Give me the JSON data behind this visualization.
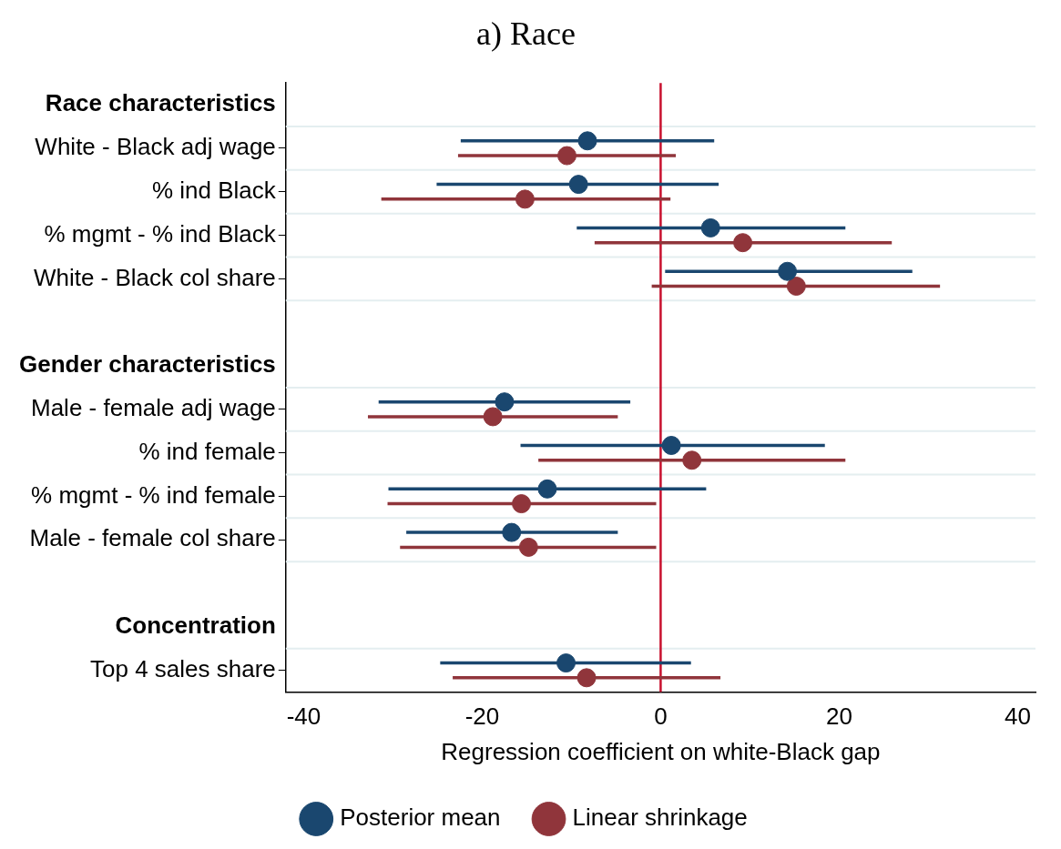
{
  "chart_data": {
    "type": "scatter",
    "orientation": "horizontal",
    "title": "a) Race",
    "xlabel": "Regression coefficient on white-Black gap",
    "categories": [
      "Race characteristics",
      "White - Black adj wage",
      "% ind Black",
      "% mgmt - % ind Black",
      "White - Black col share",
      null,
      "Gender characteristics",
      "Male - female adj wage",
      "% ind female",
      "% mgmt - % ind female",
      "Male - female col share",
      null,
      "Concentration",
      "Top 4 sales share"
    ],
    "series": [
      {
        "name": "Posterior mean",
        "color": "#1a476f",
        "values": [
          null,
          -8.2,
          -9.2,
          5.6,
          14.2,
          null,
          null,
          -17.5,
          1.2,
          -12.7,
          -16.7,
          null,
          null,
          -10.6
        ],
        "errors": [
          null,
          [
            -22.4,
            6.0
          ],
          [
            -25.1,
            6.5
          ],
          [
            -9.4,
            20.7
          ],
          [
            0.5,
            28.2
          ],
          null,
          null,
          [
            -31.6,
            -3.4
          ],
          [
            -15.7,
            18.4
          ],
          [
            -30.5,
            5.1
          ],
          [
            -28.5,
            -4.8
          ],
          null,
          null,
          [
            -24.7,
            3.4
          ]
        ]
      },
      {
        "name": "Linear shrinkage",
        "color": "#90353b",
        "values": [
          null,
          -10.5,
          -15.2,
          9.2,
          15.2,
          null,
          null,
          -18.8,
          3.5,
          -15.6,
          -14.8,
          null,
          null,
          -8.3
        ],
        "errors": [
          null,
          [
            -22.7,
            1.7
          ],
          [
            -31.3,
            1.1
          ],
          [
            -7.4,
            25.9
          ],
          [
            -1.0,
            31.3
          ],
          null,
          null,
          [
            -32.8,
            -4.8
          ],
          [
            -13.7,
            20.7
          ],
          [
            -30.6,
            -0.5
          ],
          [
            -29.2,
            -0.5
          ],
          null,
          null,
          [
            -23.3,
            6.7
          ]
        ]
      }
    ],
    "xlim": [
      -42,
      42
    ],
    "xticks": [
      -40,
      -20,
      0,
      20,
      40
    ],
    "ref_lines": [
      {
        "axis": "x",
        "value": 0,
        "color": "#c8102e"
      }
    ],
    "grid": "y",
    "legend": "bottom",
    "marker": "circle"
  }
}
